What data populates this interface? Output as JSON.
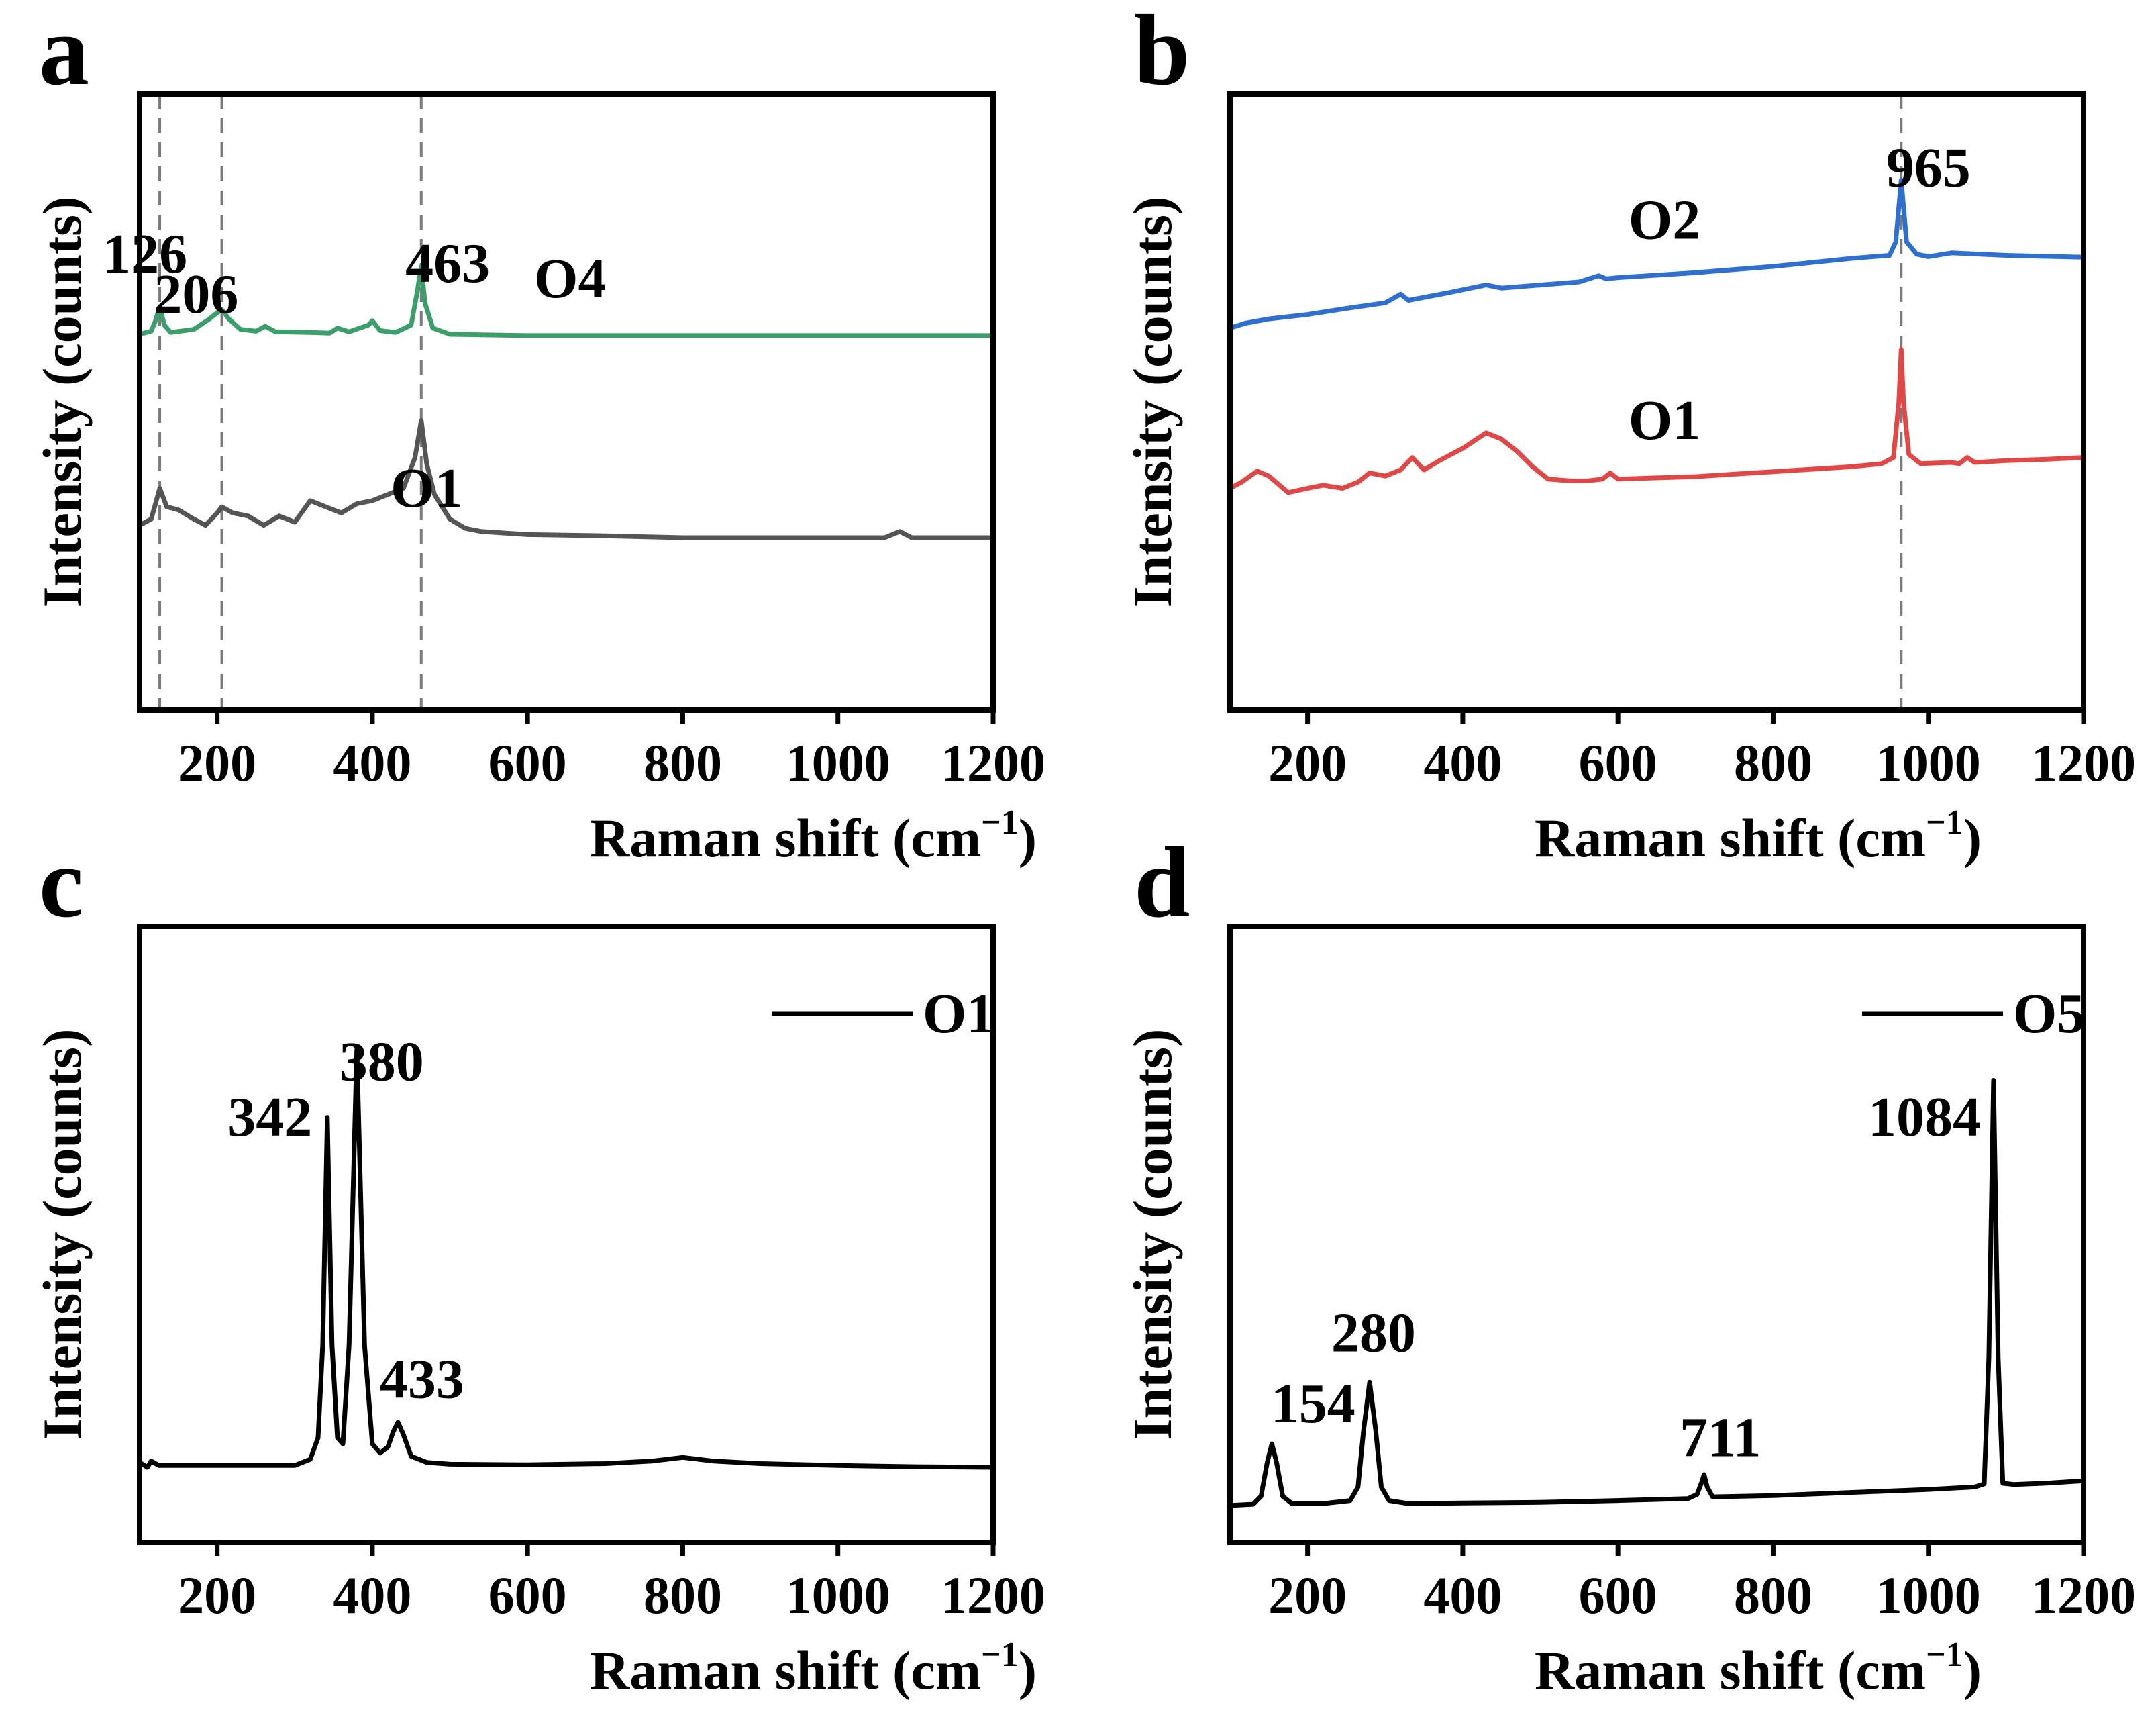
{
  "chart_data": [
    {
      "panel": "a",
      "type": "line",
      "xlabel": "Raman shift (cm",
      "xlabel_sup": "−1",
      "xlabel_end": ")",
      "ylabel": "Intensity (counts)",
      "xlim": [
        100,
        1200
      ],
      "ylim": [
        0,
        100
      ],
      "xticks": [
        200,
        400,
        600,
        800,
        1000,
        1200
      ],
      "guides": [
        126,
        206,
        463
      ],
      "series": [
        {
          "name": "O1",
          "color": "#555555",
          "label_at": [
            470,
            33
          ],
          "points": [
            [
              100,
              30
            ],
            [
              115,
              31
            ],
            [
              126,
              36
            ],
            [
              135,
              33
            ],
            [
              150,
              32.5
            ],
            [
              170,
              31
            ],
            [
              185,
              30
            ],
            [
              200,
              32
            ],
            [
              206,
              33
            ],
            [
              220,
              32
            ],
            [
              240,
              31.5
            ],
            [
              260,
              30
            ],
            [
              280,
              31.5
            ],
            [
              300,
              30.5
            ],
            [
              320,
              34
            ],
            [
              340,
              33
            ],
            [
              360,
              32
            ],
            [
              380,
              33.5
            ],
            [
              400,
              34
            ],
            [
              420,
              35
            ],
            [
              440,
              36
            ],
            [
              455,
              41
            ],
            [
              463,
              47
            ],
            [
              470,
              40
            ],
            [
              480,
              35
            ],
            [
              500,
              31
            ],
            [
              520,
              29.5
            ],
            [
              540,
              29
            ],
            [
              600,
              28.5
            ],
            [
              700,
              28.3
            ],
            [
              800,
              28
            ],
            [
              900,
              28
            ],
            [
              1000,
              28
            ],
            [
              1060,
              28
            ],
            [
              1080,
              29
            ],
            [
              1095,
              28
            ],
            [
              1200,
              28
            ]
          ]
        },
        {
          "name": "O4",
          "color": "#3c9e6b",
          "label_at": [
            655,
            67
          ],
          "points": [
            [
              100,
              61
            ],
            [
              115,
              61.5
            ],
            [
              120,
              63
            ],
            [
              126,
              65.5
            ],
            [
              132,
              62.5
            ],
            [
              140,
              61.3
            ],
            [
              170,
              61.8
            ],
            [
              190,
              63.5
            ],
            [
              200,
              64.5
            ],
            [
              206,
              65
            ],
            [
              215,
              63.5
            ],
            [
              230,
              61.8
            ],
            [
              250,
              61.5
            ],
            [
              262,
              62.3
            ],
            [
              275,
              61.4
            ],
            [
              320,
              61.3
            ],
            [
              345,
              61.2
            ],
            [
              355,
              62
            ],
            [
              370,
              61.4
            ],
            [
              395,
              62.5
            ],
            [
              400,
              63.2
            ],
            [
              410,
              61.6
            ],
            [
              430,
              61.3
            ],
            [
              450,
              62.5
            ],
            [
              458,
              68
            ],
            [
              463,
              72
            ],
            [
              468,
              66
            ],
            [
              478,
              62
            ],
            [
              500,
              61
            ],
            [
              600,
              60.8
            ],
            [
              800,
              60.8
            ],
            [
              1000,
              60.8
            ],
            [
              1200,
              60.8
            ]
          ]
        }
      ],
      "peak_labels": [
        {
          "text": "126",
          "at": [
            107,
            71
          ]
        },
        {
          "text": "206",
          "at": [
            173,
            64.5
          ]
        },
        {
          "text": "463",
          "at": [
            497,
            69.5
          ]
        }
      ]
    },
    {
      "panel": "b",
      "type": "line",
      "xlabel": "Raman shift (cm",
      "xlabel_sup": "−1",
      "xlabel_end": ")",
      "ylabel": "Intensity (counts)",
      "xlim": [
        100,
        1200
      ],
      "ylim": [
        0,
        100
      ],
      "xticks": [
        200,
        400,
        600,
        800,
        1000,
        1200
      ],
      "guides": [
        965
      ],
      "series": [
        {
          "name": "O1",
          "color": "#e04848",
          "label_at": [
            660,
            44
          ],
          "points": [
            [
              100,
              36
            ],
            [
              115,
              37
            ],
            [
              135,
              38.8
            ],
            [
              150,
              38
            ],
            [
              175,
              35.3
            ],
            [
              200,
              36
            ],
            [
              220,
              36.5
            ],
            [
              245,
              36
            ],
            [
              265,
              37
            ],
            [
              280,
              38.5
            ],
            [
              300,
              38
            ],
            [
              320,
              39
            ],
            [
              335,
              41
            ],
            [
              350,
              39
            ],
            [
              370,
              40.5
            ],
            [
              400,
              42.5
            ],
            [
              430,
              45
            ],
            [
              450,
              44
            ],
            [
              470,
              42
            ],
            [
              490,
              39.5
            ],
            [
              510,
              37.5
            ],
            [
              540,
              37.2
            ],
            [
              560,
              37.2
            ],
            [
              580,
              37.5
            ],
            [
              590,
              38.5
            ],
            [
              600,
              37.5
            ],
            [
              650,
              37.7
            ],
            [
              700,
              37.9
            ],
            [
              750,
              38.3
            ],
            [
              800,
              38.7
            ],
            [
              850,
              39.1
            ],
            [
              900,
              39.5
            ],
            [
              940,
              40
            ],
            [
              955,
              41
            ],
            [
              962,
              50
            ],
            [
              965,
              58.5
            ],
            [
              968,
              50
            ],
            [
              975,
              41.5
            ],
            [
              990,
              40
            ],
            [
              1030,
              40.2
            ],
            [
              1040,
              40
            ],
            [
              1050,
              41
            ],
            [
              1060,
              40.2
            ],
            [
              1100,
              40.5
            ],
            [
              1150,
              40.7
            ],
            [
              1200,
              41
            ]
          ]
        },
        {
          "name": "O2",
          "color": "#2f6fce",
          "label_at": [
            660,
            76.5
          ],
          "points": [
            [
              100,
              62
            ],
            [
              120,
              62.8
            ],
            [
              150,
              63.5
            ],
            [
              200,
              64.2
            ],
            [
              250,
              65.2
            ],
            [
              300,
              66.1
            ],
            [
              320,
              67.5
            ],
            [
              330,
              66.5
            ],
            [
              380,
              67.7
            ],
            [
              430,
              69
            ],
            [
              450,
              68.5
            ],
            [
              500,
              69
            ],
            [
              550,
              69.5
            ],
            [
              575,
              70.5
            ],
            [
              585,
              70
            ],
            [
              600,
              70.2
            ],
            [
              700,
              71
            ],
            [
              800,
              72
            ],
            [
              900,
              73.3
            ],
            [
              950,
              73.8
            ],
            [
              958,
              76
            ],
            [
              965,
              86
            ],
            [
              972,
              76
            ],
            [
              985,
              74
            ],
            [
              1000,
              73.6
            ],
            [
              1030,
              74.2
            ],
            [
              1100,
              73.8
            ],
            [
              1200,
              73.5
            ]
          ]
        }
      ],
      "peak_labels": [
        {
          "text": "965",
          "at": [
            1000,
            85
          ]
        }
      ]
    },
    {
      "panel": "c",
      "type": "line",
      "xlabel": "Raman shift (cm",
      "xlabel_sup": "−1",
      "xlabel_end": ")",
      "ylabel": "Intensity (counts)",
      "xlim": [
        100,
        1200
      ],
      "ylim": [
        0,
        100
      ],
      "xticks": [
        200,
        400,
        600,
        800,
        1000,
        1200
      ],
      "legend": {
        "label": "O1",
        "color": "#000000"
      },
      "series": [
        {
          "name": "O1",
          "color": "#000000",
          "points": [
            [
              100,
              13
            ],
            [
              110,
              12.2
            ],
            [
              115,
              13.2
            ],
            [
              125,
              12.5
            ],
            [
              150,
              12.5
            ],
            [
              200,
              12.5
            ],
            [
              250,
              12.5
            ],
            [
              300,
              12.5
            ],
            [
              320,
              13.5
            ],
            [
              330,
              17
            ],
            [
              336,
              32
            ],
            [
              342,
              69
            ],
            [
              348,
              32
            ],
            [
              355,
              17
            ],
            [
              362,
              16
            ],
            [
              370,
              32
            ],
            [
              380,
              80
            ],
            [
              390,
              32
            ],
            [
              400,
              16
            ],
            [
              410,
              14.5
            ],
            [
              420,
              15.5
            ],
            [
              427,
              18
            ],
            [
              433,
              19.5
            ],
            [
              440,
              17.5
            ],
            [
              450,
              14
            ],
            [
              470,
              13
            ],
            [
              500,
              12.7
            ],
            [
              600,
              12.6
            ],
            [
              700,
              12.8
            ],
            [
              760,
              13.2
            ],
            [
              800,
              13.8
            ],
            [
              840,
              13.2
            ],
            [
              900,
              12.8
            ],
            [
              1000,
              12.5
            ],
            [
              1100,
              12.3
            ],
            [
              1200,
              12.2
            ]
          ]
        }
      ],
      "peak_labels": [
        {
          "text": "342",
          "at": [
            268,
            66
          ]
        },
        {
          "text": "380",
          "at": [
            412,
            75
          ]
        },
        {
          "text": "433",
          "at": [
            464,
            23.5
          ]
        }
      ]
    },
    {
      "panel": "d",
      "type": "line",
      "xlabel": "Raman shift (cm",
      "xlabel_sup": "−1",
      "xlabel_end": ")",
      "ylabel": "Intensity (counts)",
      "xlim": [
        100,
        1200
      ],
      "ylim": [
        0,
        100
      ],
      "xticks": [
        200,
        400,
        600,
        800,
        1000,
        1200
      ],
      "legend": {
        "label": "O5",
        "color": "#000000"
      },
      "series": [
        {
          "name": "O5",
          "color": "#000000",
          "points": [
            [
              100,
              6
            ],
            [
              130,
              6.2
            ],
            [
              140,
              7.5
            ],
            [
              148,
              13
            ],
            [
              154,
              16
            ],
            [
              160,
              13
            ],
            [
              168,
              7.5
            ],
            [
              180,
              6.3
            ],
            [
              220,
              6.3
            ],
            [
              255,
              6.8
            ],
            [
              265,
              9
            ],
            [
              272,
              18
            ],
            [
              280,
              26
            ],
            [
              288,
              18
            ],
            [
              295,
              9
            ],
            [
              305,
              6.8
            ],
            [
              330,
              6.3
            ],
            [
              400,
              6.4
            ],
            [
              500,
              6.5
            ],
            [
              600,
              6.8
            ],
            [
              690,
              7.1
            ],
            [
              702,
              7.8
            ],
            [
              708,
              9.8
            ],
            [
              711,
              11
            ],
            [
              715,
              9
            ],
            [
              722,
              7.4
            ],
            [
              800,
              7.6
            ],
            [
              900,
              8.1
            ],
            [
              1000,
              8.6
            ],
            [
              1060,
              9
            ],
            [
              1072,
              9.5
            ],
            [
              1078,
              30
            ],
            [
              1084,
              75
            ],
            [
              1090,
              30
            ],
            [
              1096,
              9.6
            ],
            [
              1110,
              9.4
            ],
            [
              1150,
              9.6
            ],
            [
              1200,
              10
            ]
          ]
        }
      ],
      "peak_labels": [
        {
          "text": "154",
          "at": [
            207,
            19.5
          ]
        },
        {
          "text": "280",
          "at": [
            285,
            31
          ]
        },
        {
          "text": "711",
          "at": [
            732,
            14
          ]
        },
        {
          "text": "1084",
          "at": [
            995,
            66
          ]
        }
      ]
    }
  ]
}
